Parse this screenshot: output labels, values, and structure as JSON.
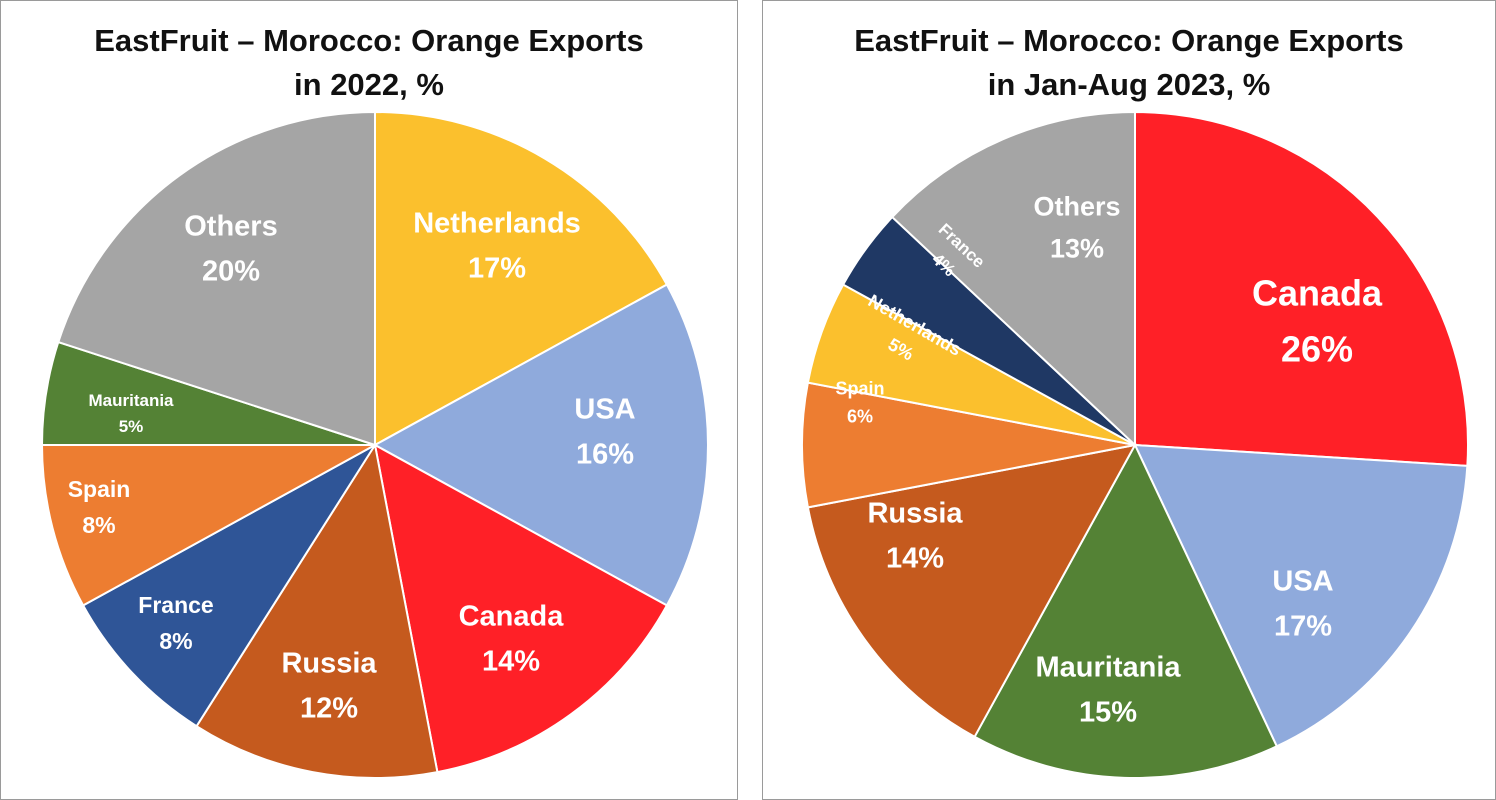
{
  "chart_data": [
    {
      "type": "pie",
      "title_line1": "EastFruit – Morocco: Orange Exports",
      "title_line2": "in 2022, %",
      "slices": [
        {
          "label": "Netherlands",
          "value": 17,
          "value_text": "17%",
          "color": "#fbc02d",
          "label_color": "#ffffff"
        },
        {
          "label": "USA",
          "value": 16,
          "value_text": "16%",
          "color": "#8faadc",
          "label_color": "#ffffff"
        },
        {
          "label": "Canada",
          "value": 14,
          "value_text": "14%",
          "color": "#ff2027",
          "label_color": "#ffffff"
        },
        {
          "label": "Russia",
          "value": 12,
          "value_text": "12%",
          "color": "#c55a1e",
          "label_color": "#ffffff"
        },
        {
          "label": "France",
          "value": 8,
          "value_text": "8%",
          "color": "#2f5597",
          "label_color": "#ffffff"
        },
        {
          "label": "Spain",
          "value": 8,
          "value_text": "8%",
          "color": "#ed7d31",
          "label_color": "#ffffff"
        },
        {
          "label": "Mauritania",
          "value": 5,
          "value_text": "5%",
          "color": "#548235",
          "label_color": "#ffffff"
        },
        {
          "label": "Others",
          "value": 20,
          "value_text": "20%",
          "color": "#a5a5a5",
          "label_color": "#ffffff"
        }
      ]
    },
    {
      "type": "pie",
      "title_line1": "EastFruit – Morocco: Orange Exports",
      "title_line2": "in Jan-Aug 2023, %",
      "slices": [
        {
          "label": "Canada",
          "value": 26,
          "value_text": "26%",
          "color": "#ff2027",
          "label_color": "#ffffff"
        },
        {
          "label": "USA",
          "value": 17,
          "value_text": "17%",
          "color": "#8faadc",
          "label_color": "#ffffff"
        },
        {
          "label": "Mauritania",
          "value": 15,
          "value_text": "15%",
          "color": "#548235",
          "label_color": "#ffffff"
        },
        {
          "label": "Russia",
          "value": 14,
          "value_text": "14%",
          "color": "#c55a1e",
          "label_color": "#ffffff"
        },
        {
          "label": "Spain",
          "value": 6,
          "value_text": "6%",
          "color": "#ed7d31",
          "label_color": "#ffffff"
        },
        {
          "label": "Netherlands",
          "value": 5,
          "value_text": "5%",
          "color": "#fbc02d",
          "label_color": "#ffffff"
        },
        {
          "label": "France",
          "value": 4,
          "value_text": "4%",
          "color": "#1f3864",
          "label_color": "#ffffff"
        },
        {
          "label": "Others",
          "value": 13,
          "value_text": "13%",
          "color": "#a5a5a5",
          "label_color": "#ffffff"
        }
      ]
    }
  ]
}
